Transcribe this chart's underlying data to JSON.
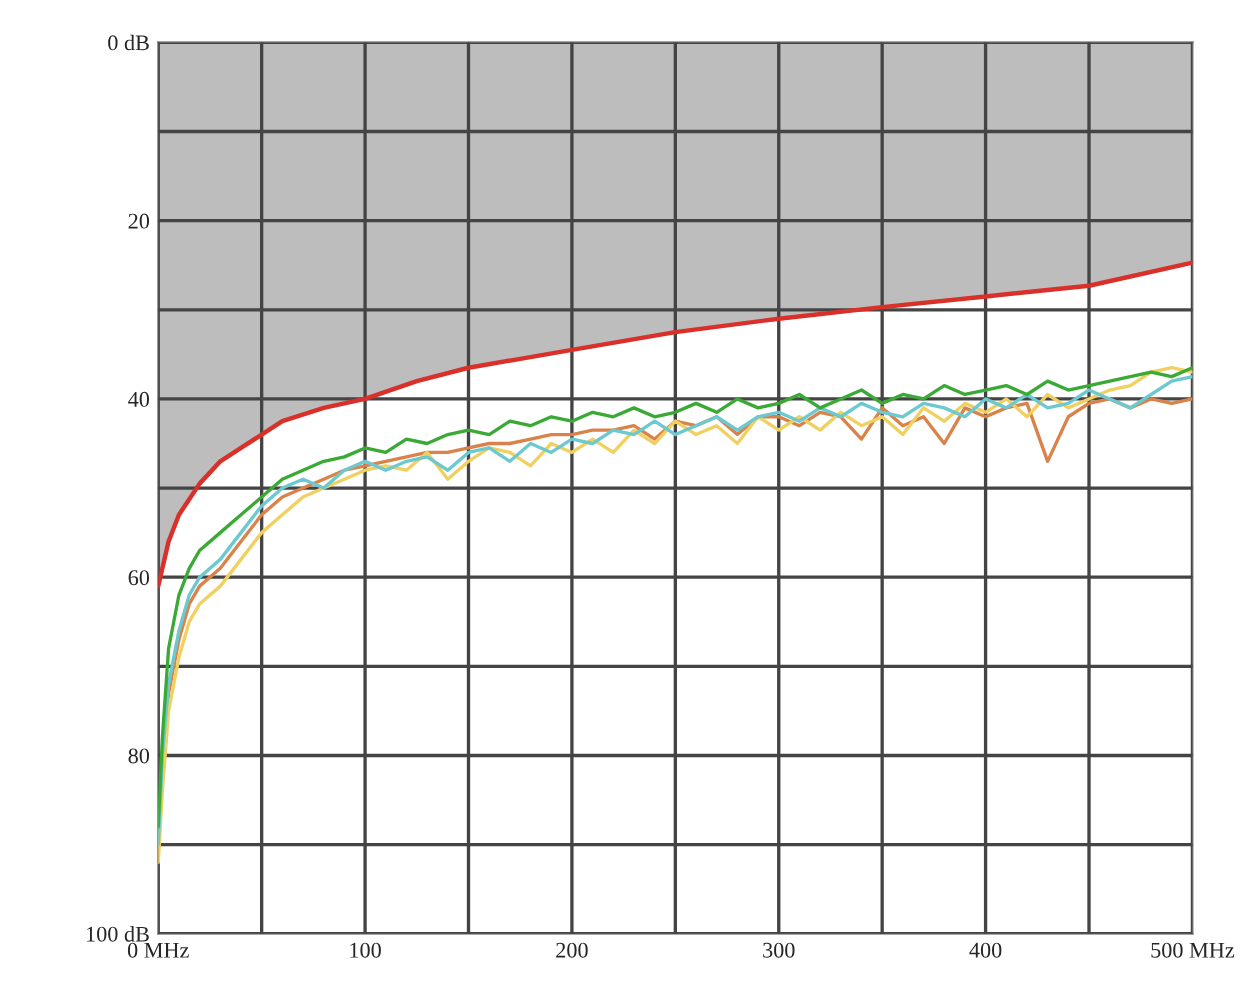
{
  "chart_data": {
    "type": "line",
    "xlim": [
      0,
      500
    ],
    "ylim": [
      100,
      0
    ],
    "xticks": [
      {
        "value": 0,
        "label": "0 MHz"
      },
      {
        "value": 50,
        "label": null
      },
      100,
      {
        "value": 150,
        "label": null
      },
      200,
      {
        "value": 250,
        "label": null
      },
      300,
      {
        "value": 350,
        "label": null
      },
      400,
      {
        "value": 450,
        "label": null
      },
      {
        "value": 500,
        "label": "500 MHz"
      }
    ],
    "yticks": [
      {
        "value": 0,
        "label": "0 dB"
      },
      {
        "value": 10,
        "label": null
      },
      20,
      {
        "value": 30,
        "label": null
      },
      40,
      {
        "value": 50,
        "label": null
      },
      60,
      {
        "value": 70,
        "label": null
      },
      80,
      {
        "value": 90,
        "label": null
      },
      {
        "value": 100,
        "label": "100 dB"
      }
    ],
    "grid": true,
    "legend": false,
    "x": [
      0,
      2,
      5,
      10,
      15,
      20,
      30,
      40,
      50,
      60,
      70,
      80,
      90,
      100,
      110,
      120,
      130,
      140,
      150,
      160,
      170,
      180,
      190,
      200,
      210,
      220,
      230,
      240,
      250,
      260,
      270,
      280,
      290,
      300,
      310,
      320,
      330,
      340,
      350,
      360,
      370,
      380,
      390,
      400,
      410,
      420,
      430,
      440,
      450,
      460,
      470,
      480,
      490,
      500
    ],
    "series": [
      {
        "color": "#d9824a",
        "values": [
          90,
          82,
          73,
          67,
          63,
          61,
          59,
          56,
          53,
          51,
          50,
          49,
          48,
          47.5,
          47,
          46.5,
          46,
          46,
          45.5,
          45,
          45,
          44.5,
          44,
          44,
          43.5,
          43.5,
          43,
          44.5,
          42.5,
          43,
          42,
          44,
          42,
          42,
          43,
          41.5,
          42,
          44.5,
          41,
          43,
          42,
          45,
          41,
          42,
          41,
          40.5,
          47,
          42,
          40.5,
          40,
          41,
          40,
          40.5,
          40
        ]
      },
      {
        "color": "#f0d060",
        "values": [
          92,
          84,
          75,
          69,
          65,
          63,
          61,
          58,
          55,
          53,
          51,
          50,
          49,
          48,
          47.5,
          48,
          46,
          49,
          47,
          45.5,
          46,
          47.5,
          45,
          46,
          44.5,
          46,
          43.5,
          45,
          42.5,
          44,
          43,
          45,
          42,
          43.5,
          42,
          43.5,
          41.5,
          43,
          42,
          44,
          41,
          42.5,
          40.5,
          41.5,
          40,
          42,
          39.5,
          41,
          40,
          39,
          38.5,
          37,
          36.5,
          37
        ]
      },
      {
        "color": "#6cc9d0",
        "values": [
          90,
          80,
          72,
          66,
          62,
          60,
          58,
          55,
          52,
          50,
          49,
          50,
          48,
          47,
          48,
          47,
          46.5,
          48,
          46,
          45.5,
          47,
          45,
          46,
          44.5,
          45,
          43.5,
          44,
          42.5,
          44,
          43,
          42,
          43.5,
          42,
          41.5,
          42.5,
          41,
          42,
          40.5,
          41.5,
          42,
          40.5,
          41,
          42,
          40,
          41,
          39.5,
          41,
          40.5,
          39,
          40,
          41,
          39.5,
          38,
          37.5
        ]
      },
      {
        "color": "#3aa935",
        "values": [
          88,
          78,
          68,
          62,
          59,
          57,
          55,
          53,
          51,
          49,
          48,
          47,
          46.5,
          45.5,
          46,
          44.5,
          45,
          44,
          43.5,
          44,
          42.5,
          43,
          42,
          42.5,
          41.5,
          42,
          41,
          42,
          41.5,
          40.5,
          41.5,
          40,
          41,
          40.5,
          39.5,
          41,
          40,
          39,
          40.5,
          39.5,
          40,
          38.5,
          39.5,
          39,
          38.5,
          39.5,
          38,
          39,
          38.5,
          38,
          37.5,
          37,
          37.5,
          36.5
        ]
      },
      {
        "type": "area",
        "color": "#d9302a",
        "x": [
          0,
          5,
          10,
          20,
          30,
          40,
          50,
          60,
          80,
          100,
          125,
          150,
          175,
          200,
          250,
          300,
          350,
          400,
          450,
          500
        ],
        "values": [
          61,
          56,
          53,
          49.5,
          47,
          45.5,
          44,
          42.5,
          41,
          40,
          38,
          36.5,
          35.5,
          34.5,
          32.5,
          31,
          29.7,
          28.5,
          27.3,
          24.7
        ]
      }
    ]
  }
}
